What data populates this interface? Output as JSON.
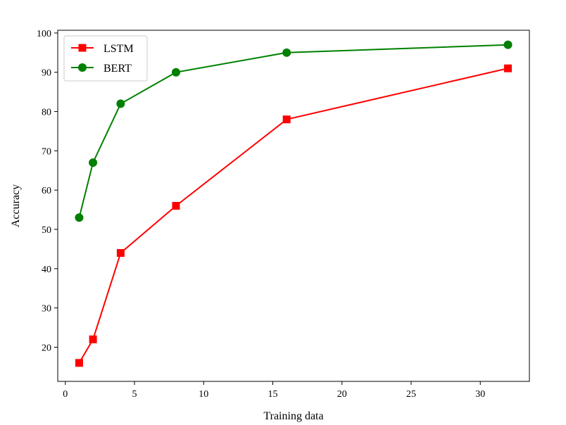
{
  "chart_data": {
    "type": "line",
    "title": "",
    "xlabel": "Training data",
    "ylabel": "Accuracy",
    "xlim": [
      -0.55,
      33.55
    ],
    "ylim": [
      11.3,
      100.7
    ],
    "xticks": [
      0,
      5,
      10,
      15,
      20,
      25,
      30
    ],
    "yticks": [
      20,
      30,
      40,
      50,
      60,
      70,
      80,
      90,
      100
    ],
    "grid": false,
    "legend": "top-left",
    "series": [
      {
        "name": "LSTM",
        "color": "#ff0000",
        "marker": "square",
        "x": [
          1,
          2,
          4,
          8,
          16,
          32
        ],
        "y": [
          16,
          22,
          44,
          56,
          78,
          91
        ]
      },
      {
        "name": "BERT",
        "color": "#008000",
        "marker": "circle",
        "x": [
          1,
          2,
          4,
          8,
          16,
          32
        ],
        "y": [
          53,
          67,
          82,
          90,
          95,
          97
        ]
      }
    ]
  }
}
